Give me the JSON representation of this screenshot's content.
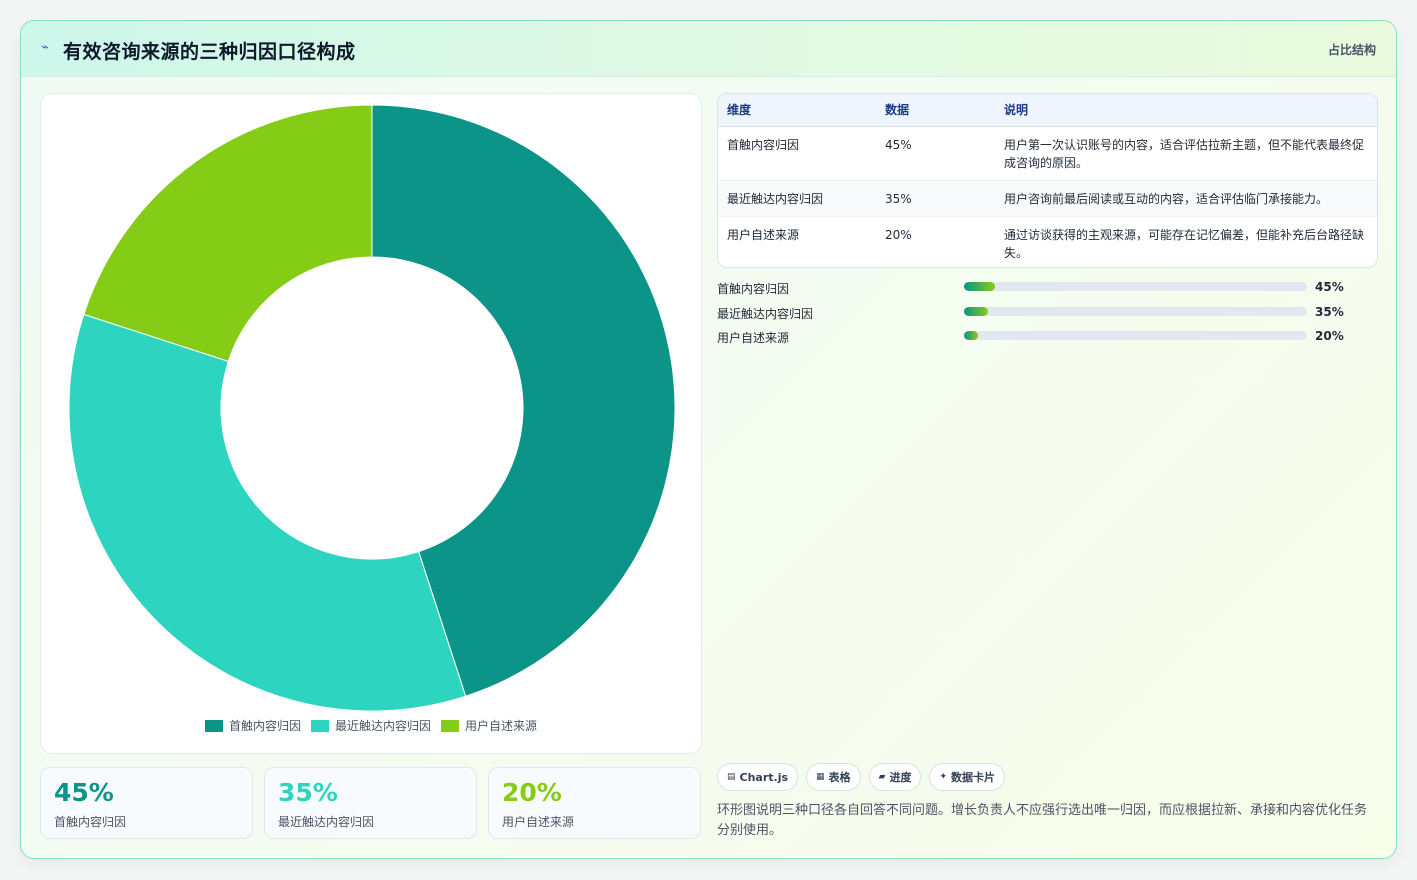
{
  "header": {
    "icon": "bolt-icon",
    "title": "有效咨询来源的三种归因口径构成",
    "tag": "占比结构"
  },
  "colors": {
    "first_touch": "#0d9488",
    "last_touch": "#2dd4bf",
    "self_report": "#84cc16"
  },
  "chart_data": {
    "type": "doughnut",
    "categories": [
      "首触内容归因",
      "最近触达内容归因",
      "用户自述来源"
    ],
    "values": [
      45,
      35,
      20
    ],
    "unit": "%",
    "legend_position": "bottom",
    "title": ""
  },
  "kpis": [
    {
      "value": "45%",
      "label": "首触内容归因"
    },
    {
      "value": "35%",
      "label": "最近触达内容归因"
    },
    {
      "value": "20%",
      "label": "用户自述来源"
    }
  ],
  "table": {
    "headers": [
      "维度",
      "数据",
      "说明"
    ],
    "rows": [
      {
        "dim": "首触内容归因",
        "data": "45%",
        "desc": "用户第一次认识账号的内容，适合评估拉新主题，但不能代表最终促成咨询的原因。"
      },
      {
        "dim": "最近触达内容归因",
        "data": "35%",
        "desc": "用户咨询前最后阅读或互动的内容，适合评估临门承接能力。"
      },
      {
        "dim": "用户自述来源",
        "data": "20%",
        "desc": "通过访谈获得的主观来源，可能存在记忆偏差，但能补充后台路径缺失。"
      }
    ]
  },
  "progress": [
    {
      "label": "首触内容归因",
      "value": 45,
      "pct_text": "45%"
    },
    {
      "label": "最近触达内容归因",
      "value": 35,
      "pct_text": "35%"
    },
    {
      "label": "用户自述来源",
      "value": 20,
      "pct_text": "20%"
    }
  ],
  "chips": [
    {
      "icon": "chart-icon",
      "glyph": "▤",
      "label": "Chart.js"
    },
    {
      "icon": "table-icon",
      "glyph": "▦",
      "label": "表格"
    },
    {
      "icon": "progress-icon",
      "glyph": "▰",
      "label": "进度"
    },
    {
      "icon": "sparkle-icon",
      "glyph": "✦",
      "label": "数据卡片"
    }
  ],
  "note": "环形图说明三种口径各自回答不同问题。增长负责人不应强行选出唯一归因，而应根据拉新、承接和内容优化任务分别使用。"
}
